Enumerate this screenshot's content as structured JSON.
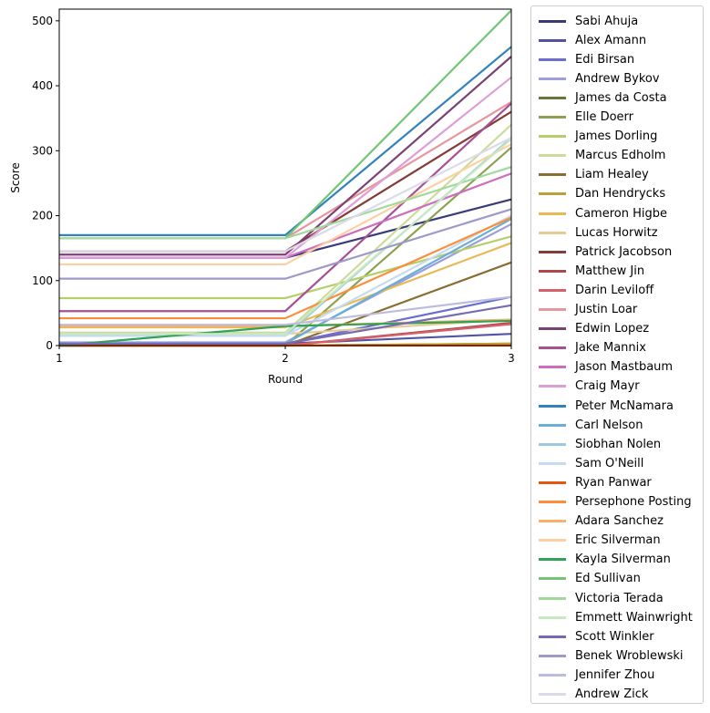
{
  "chart_data": {
    "type": "line",
    "xlabel": "Round",
    "ylabel": "Score",
    "x": [
      1,
      2,
      3
    ],
    "xticks": [
      "1",
      "2",
      "3"
    ],
    "yticks": [
      "0",
      "100",
      "200",
      "300",
      "400",
      "500"
    ],
    "ylim": [
      0,
      518
    ],
    "grid": false,
    "legend_placement": "outside-right",
    "series": [
      {
        "name": "Sabi Ahuja",
        "color": "#393b79",
        "values": [
          135,
          135,
          225
        ]
      },
      {
        "name": "Alex Amann",
        "color": "#5254a3",
        "values": [
          3,
          3,
          18
        ]
      },
      {
        "name": "Edi Birsan",
        "color": "#6b6ecf",
        "values": [
          3,
          3,
          75
        ]
      },
      {
        "name": "Andrew Bykov",
        "color": "#9c9ede",
        "values": [
          5,
          5,
          187
        ]
      },
      {
        "name": "James da Costa",
        "color": "#637939",
        "values": [
          0,
          0,
          3
        ]
      },
      {
        "name": "Elle Doerr",
        "color": "#8ca252",
        "values": [
          0,
          0,
          305
        ]
      },
      {
        "name": "James Dorling",
        "color": "#b5cf6b",
        "values": [
          73,
          73,
          168
        ]
      },
      {
        "name": "Marcus Edholm",
        "color": "#cedb9c",
        "values": [
          20,
          20,
          340
        ]
      },
      {
        "name": "Liam Healey",
        "color": "#8c6d31",
        "values": [
          0,
          0,
          128
        ]
      },
      {
        "name": "Dan Hendrycks",
        "color": "#bd9e39",
        "values": [
          0,
          0,
          3
        ]
      },
      {
        "name": "Cameron Higbe",
        "color": "#e7ba52",
        "values": [
          28,
          28,
          158
        ]
      },
      {
        "name": "Lucas Horwitz",
        "color": "#e7cb94",
        "values": [
          18,
          18,
          40
        ]
      },
      {
        "name": "Patrick Jacobson",
        "color": "#843c39",
        "values": [
          145,
          145,
          360
        ]
      },
      {
        "name": "Matthew Jin",
        "color": "#ad494a",
        "values": [
          0,
          0,
          35
        ]
      },
      {
        "name": "Darin Leviloff",
        "color": "#d6616b",
        "values": [
          0,
          0,
          33
        ]
      },
      {
        "name": "Justin Loar",
        "color": "#e7969c",
        "values": [
          165,
          165,
          375
        ]
      },
      {
        "name": "Edwin Lopez",
        "color": "#7b4173",
        "values": [
          140,
          140,
          445
        ]
      },
      {
        "name": "Jake Mannix",
        "color": "#a55194",
        "values": [
          53,
          53,
          373
        ]
      },
      {
        "name": "Jason Mastbaum",
        "color": "#ce6dbd",
        "values": [
          135,
          135,
          265
        ]
      },
      {
        "name": "Craig Mayr",
        "color": "#de9ed6",
        "values": [
          135,
          135,
          413
        ]
      },
      {
        "name": "Peter McNamara",
        "color": "#3182bd",
        "values": [
          170,
          170,
          460
        ]
      },
      {
        "name": "Carl Nelson",
        "color": "#6baed6",
        "values": [
          3,
          3,
          195
        ]
      },
      {
        "name": "Siobhan Nolen",
        "color": "#9ecae1",
        "values": [
          15,
          15,
          320
        ]
      },
      {
        "name": "Sam O'Neill",
        "color": "#c6dbef",
        "values": [
          15,
          15,
          200
        ]
      },
      {
        "name": "Ryan Panwar",
        "color": "#e6550d",
        "values": [
          0,
          0,
          0
        ]
      },
      {
        "name": "Persephone Posting",
        "color": "#fd8d3c",
        "values": [
          42,
          42,
          197
        ]
      },
      {
        "name": "Adara Sanchez",
        "color": "#fdae6b",
        "values": [
          30,
          30,
          40
        ]
      },
      {
        "name": "Eric Silverman",
        "color": "#fdd0a2",
        "values": [
          125,
          125,
          310
        ]
      },
      {
        "name": "Kayla Silverman",
        "color": "#31a354",
        "values": [
          0,
          30,
          38
        ]
      },
      {
        "name": "Ed Sullivan",
        "color": "#74c476",
        "values": [
          165,
          165,
          516
        ]
      },
      {
        "name": "Victoria Terada",
        "color": "#a1d99b",
        "values": [
          165,
          165,
          275
        ]
      },
      {
        "name": "Emmett Wainwright",
        "color": "#c7e9c0",
        "values": [
          18,
          18,
          318
        ]
      },
      {
        "name": "Scott Winkler",
        "color": "#756bb1",
        "values": [
          3,
          3,
          62
        ]
      },
      {
        "name": "Benek Wroblewski",
        "color": "#9e9ac8",
        "values": [
          103,
          103,
          210
        ]
      },
      {
        "name": "Jennifer Zhou",
        "color": "#bcbddc",
        "values": [
          32,
          32,
          75
        ]
      },
      {
        "name": "Andrew Zick",
        "color": "#dadaeb",
        "values": [
          145,
          145,
          320
        ]
      }
    ]
  }
}
